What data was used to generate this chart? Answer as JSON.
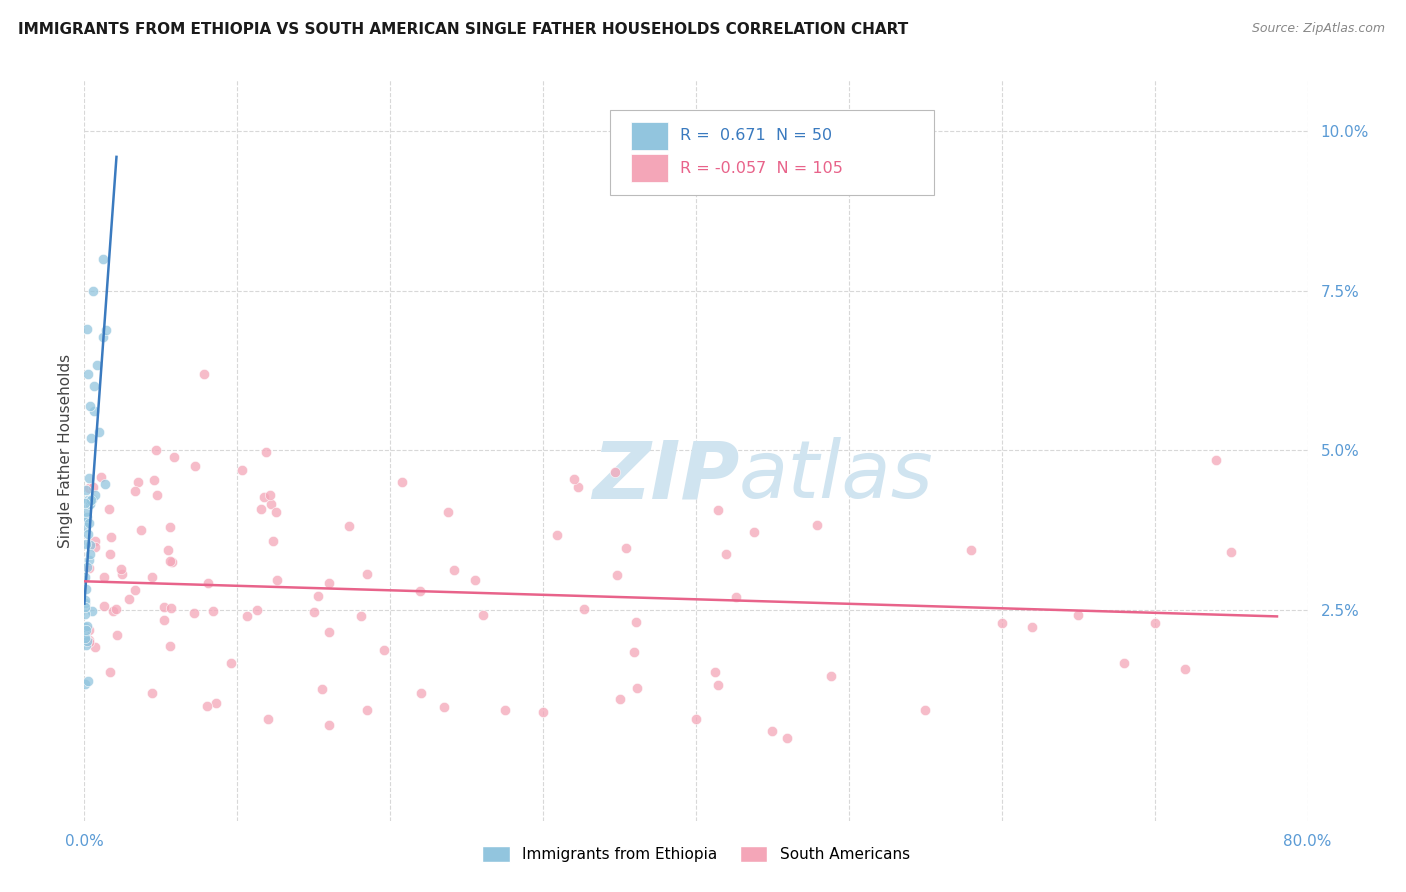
{
  "title": "IMMIGRANTS FROM ETHIOPIA VS SOUTH AMERICAN SINGLE FATHER HOUSEHOLDS CORRELATION CHART",
  "source": "Source: ZipAtlas.com",
  "ylabel": "Single Father Households",
  "xlim": [
    0.0,
    0.8
  ],
  "ylim": [
    -0.008,
    0.108
  ],
  "x_tick_positions": [
    0.0,
    0.1,
    0.2,
    0.3,
    0.4,
    0.5,
    0.6,
    0.7,
    0.8
  ],
  "x_tick_labels": [
    "0.0%",
    "",
    "",
    "",
    "",
    "",
    "",
    "",
    "80.0%"
  ],
  "y_tick_positions": [
    0.025,
    0.05,
    0.075,
    0.1
  ],
  "y_tick_labels": [
    "2.5%",
    "5.0%",
    "7.5%",
    "10.0%"
  ],
  "blue_R": 0.671,
  "blue_N": 50,
  "pink_R": -0.057,
  "pink_N": 105,
  "blue_color": "#92c5de",
  "pink_color": "#f4a6b8",
  "blue_line_color": "#3a7abf",
  "pink_line_color": "#e8638a",
  "blue_trend_x": [
    0.0,
    0.021
  ],
  "blue_trend_y": [
    0.026,
    0.096
  ],
  "pink_trend_x": [
    0.0,
    0.78
  ],
  "pink_trend_y": [
    0.0295,
    0.024
  ],
  "watermark_ZIP": "ZIP",
  "watermark_atlas": "atlas",
  "watermark_color": "#d0e4f0",
  "tick_color": "#5b9bd5",
  "title_color": "#1a1a1a",
  "source_color": "#888888",
  "grid_color": "#d8d8d8",
  "blue_scatter_seed": 42,
  "pink_scatter_seed": 99
}
